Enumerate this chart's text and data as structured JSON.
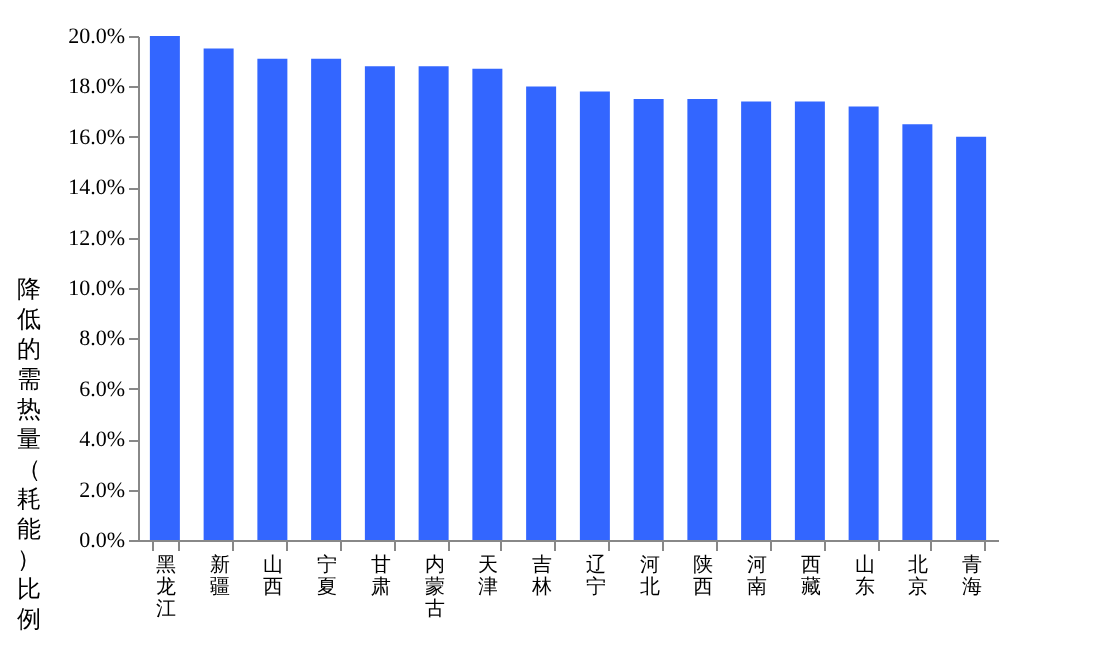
{
  "chart_data": {
    "type": "bar",
    "ylabel": "降低的需热量（耗能）比例",
    "categories": [
      "黑龙江",
      "新疆",
      "山西",
      "宁夏",
      "甘肃",
      "内蒙古",
      "天津",
      "吉林",
      "辽宁",
      "河北",
      "陕西",
      "河南",
      "西藏",
      "山东",
      "北京",
      "青海"
    ],
    "values": [
      20.0,
      19.5,
      19.1,
      19.1,
      18.8,
      18.8,
      18.7,
      18.0,
      17.8,
      17.5,
      17.5,
      17.4,
      17.4,
      17.2,
      16.5,
      16.0
    ],
    "color": "#3366ff",
    "ylim": [
      0,
      20
    ],
    "yticks": [
      {
        "value": 0,
        "label": "0.0%"
      },
      {
        "value": 2,
        "label": "2.0%"
      },
      {
        "value": 4,
        "label": "4.0%"
      },
      {
        "value": 6,
        "label": "6.0%"
      },
      {
        "value": 8,
        "label": "8.0%"
      },
      {
        "value": 10,
        "label": "10.0%"
      },
      {
        "value": 12,
        "label": "12.0%"
      },
      {
        "value": 14,
        "label": "14.0%"
      },
      {
        "value": 16,
        "label": "16.0%"
      },
      {
        "value": 18,
        "label": "18.0%"
      },
      {
        "value": 20,
        "label": "20.0%"
      }
    ],
    "grid": false
  }
}
